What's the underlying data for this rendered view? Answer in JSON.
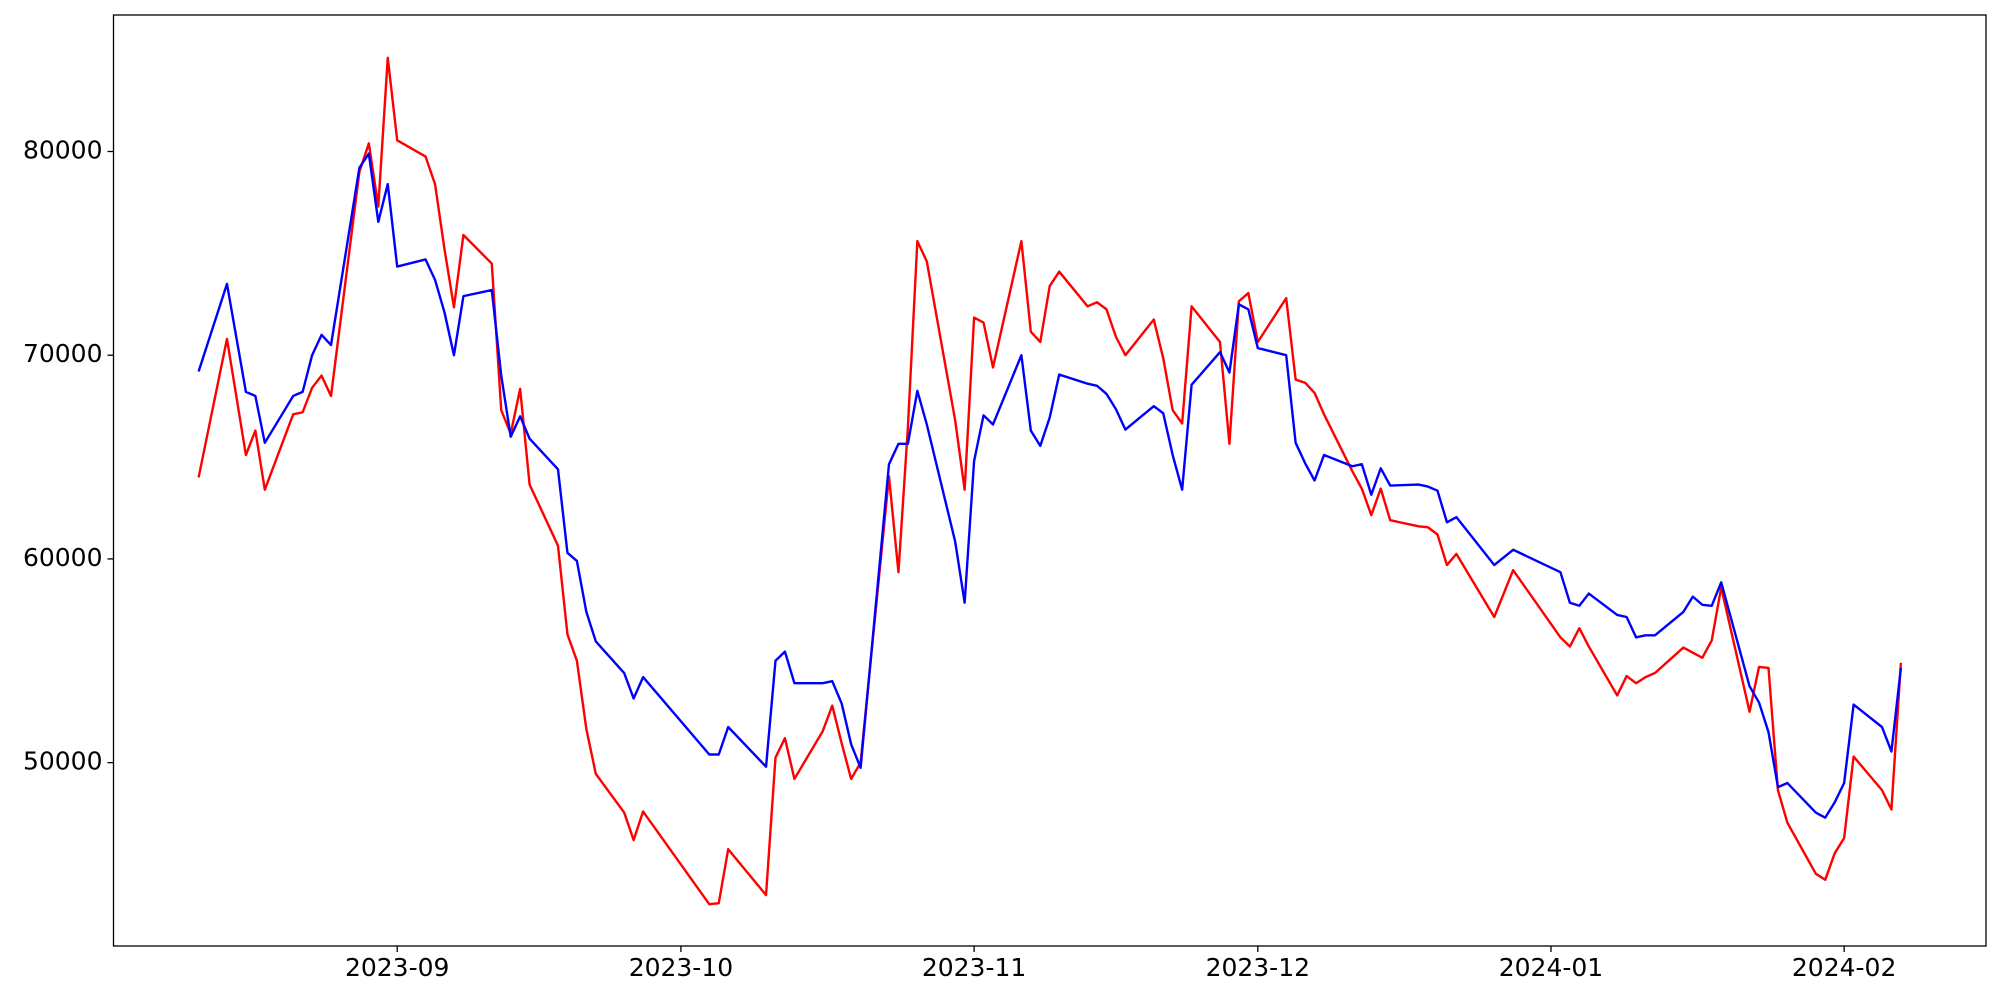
{
  "chart_data": {
    "type": "line",
    "x": [
      "2023-08-11",
      "2023-08-14",
      "2023-08-16",
      "2023-08-17",
      "2023-08-18",
      "2023-08-21",
      "2023-08-22",
      "2023-08-23",
      "2023-08-24",
      "2023-08-25",
      "2023-08-28",
      "2023-08-29",
      "2023-08-30",
      "2023-08-31",
      "2023-09-01",
      "2023-09-04",
      "2023-09-05",
      "2023-09-06",
      "2023-09-07",
      "2023-09-08",
      "2023-09-11",
      "2023-09-12",
      "2023-09-13",
      "2023-09-14",
      "2023-09-15",
      "2023-09-18",
      "2023-09-19",
      "2023-09-20",
      "2023-09-21",
      "2023-09-22",
      "2023-09-25",
      "2023-09-26",
      "2023-09-27",
      "2023-10-04",
      "2023-10-05",
      "2023-10-06",
      "2023-10-10",
      "2023-10-11",
      "2023-10-12",
      "2023-10-13",
      "2023-10-16",
      "2023-10-17",
      "2023-10-18",
      "2023-10-19",
      "2023-10-20",
      "2023-10-23",
      "2023-10-24",
      "2023-10-25",
      "2023-10-26",
      "2023-10-27",
      "2023-10-30",
      "2023-10-31",
      "2023-11-01",
      "2023-11-02",
      "2023-11-03",
      "2023-11-06",
      "2023-11-07",
      "2023-11-08",
      "2023-11-09",
      "2023-11-10",
      "2023-11-13",
      "2023-11-14",
      "2023-11-15",
      "2023-11-16",
      "2023-11-17",
      "2023-11-20",
      "2023-11-21",
      "2023-11-22",
      "2023-11-23",
      "2023-11-24",
      "2023-11-27",
      "2023-11-28",
      "2023-11-29",
      "2023-11-30",
      "2023-12-01",
      "2023-12-04",
      "2023-12-05",
      "2023-12-06",
      "2023-12-07",
      "2023-12-08",
      "2023-12-11",
      "2023-12-12",
      "2023-12-13",
      "2023-12-14",
      "2023-12-15",
      "2023-12-18",
      "2023-12-19",
      "2023-12-20",
      "2023-12-21",
      "2023-12-22",
      "2023-12-26",
      "2023-12-28",
      "2024-01-02",
      "2024-01-03",
      "2024-01-04",
      "2024-01-05",
      "2024-01-08",
      "2024-01-09",
      "2024-01-10",
      "2024-01-11",
      "2024-01-12",
      "2024-01-15",
      "2024-01-16",
      "2024-01-17",
      "2024-01-18",
      "2024-01-19",
      "2024-01-22",
      "2024-01-23",
      "2024-01-24",
      "2024-01-25",
      "2024-01-26",
      "2024-01-29",
      "2024-01-30",
      "2024-01-31",
      "2024-02-01",
      "2024-02-02",
      "2024-02-05",
      "2024-02-06",
      "2024-02-07"
    ],
    "series": [
      {
        "color": "red",
        "values": [
          64000,
          70800,
          65100,
          66300,
          63400,
          67100,
          67200,
          68400,
          69000,
          68000,
          79000,
          80400,
          77300,
          84600,
          80550,
          79750,
          78400,
          75200,
          72350,
          75900,
          74500,
          67300,
          66150,
          68350,
          63650,
          60650,
          56300,
          55000,
          51650,
          49450,
          47550,
          46200,
          47600,
          43050,
          43100,
          45750,
          43500,
          50250,
          51200,
          49200,
          51550,
          52800,
          50950,
          49200,
          50000,
          64050,
          59350,
          66450,
          75600,
          74600,
          66800,
          63400,
          71850,
          71600,
          69400,
          75600,
          71150,
          70650,
          73400,
          74100,
          72400,
          72600,
          72250,
          70900,
          70000,
          71750,
          69850,
          67300,
          66650,
          72400,
          70650,
          65650,
          72650,
          73050,
          70650,
          72800,
          68800,
          68650,
          68150,
          67100,
          64300,
          63450,
          62150,
          63450,
          61900,
          61600,
          61550,
          61200,
          59700,
          60250,
          57150,
          59450,
          56150,
          55700,
          56600,
          55700,
          53300,
          54250,
          53900,
          54200,
          54400,
          55650,
          55400,
          55150,
          56000,
          58600,
          52500,
          54700,
          54650,
          48650,
          47050,
          44550,
          44250,
          45550,
          46300,
          50300,
          48650,
          47700,
          54900
        ]
      },
      {
        "color": "blue",
        "values": [
          69200,
          73500,
          68200,
          68000,
          65700,
          68000,
          68200,
          70000,
          71000,
          70500,
          79200,
          79900,
          76550,
          78400,
          74350,
          74700,
          73700,
          72100,
          70000,
          72900,
          73200,
          69000,
          66000,
          67000,
          65900,
          64400,
          60300,
          59900,
          57400,
          55950,
          54400,
          53150,
          54200,
          50400,
          50400,
          51750,
          49800,
          55000,
          55450,
          53900,
          53900,
          54000,
          52900,
          50900,
          49750,
          64650,
          65650,
          65650,
          68250,
          66600,
          60850,
          57850,
          64800,
          67050,
          66600,
          70000,
          66300,
          65550,
          66950,
          69050,
          68600,
          68500,
          68100,
          67350,
          66350,
          67500,
          67150,
          65100,
          63400,
          68550,
          70150,
          69150,
          72500,
          72250,
          70350,
          70000,
          65700,
          64700,
          63850,
          65100,
          64550,
          64650,
          63150,
          64450,
          63600,
          63650,
          63550,
          63350,
          61800,
          62050,
          59700,
          60450,
          59350,
          57850,
          57700,
          58300,
          57250,
          57150,
          56150,
          56250,
          56250,
          57400,
          58150,
          57750,
          57700,
          58850,
          53750,
          52950,
          51500,
          48800,
          49000,
          47550,
          47300,
          48050,
          49000,
          52850,
          51750,
          50550,
          54650
        ]
      }
    ],
    "xlim": [
      "2023-08-02",
      "2024-02-16"
    ],
    "xticks": [
      {
        "value": "2023-09-01",
        "label": "2023-09"
      },
      {
        "value": "2023-10-01",
        "label": "2023-10"
      },
      {
        "value": "2023-11-01",
        "label": "2023-11"
      },
      {
        "value": "2023-12-01",
        "label": "2023-12"
      },
      {
        "value": "2024-01-01",
        "label": "2024-01"
      },
      {
        "value": "2024-02-01",
        "label": "2024-02"
      }
    ],
    "ylim": [
      41000,
      86700
    ],
    "yticks": [
      50000,
      60000,
      70000,
      80000
    ],
    "grid": false
  }
}
